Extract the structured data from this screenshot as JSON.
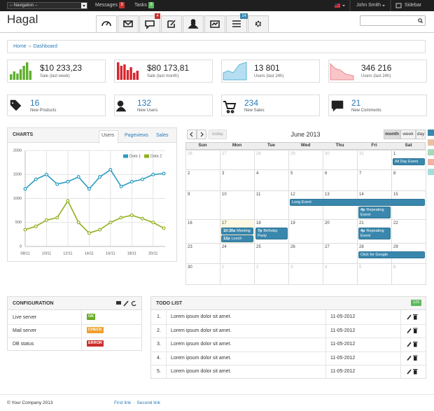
{
  "navbar": {
    "navigation": "-- Navigation --",
    "messages": {
      "label": "Messages",
      "badge": "3"
    },
    "tasks": {
      "label": "Tasks",
      "badge": "5"
    },
    "user": "John Smith",
    "sidebar": "Sidebar"
  },
  "header": {
    "title": "Hagal",
    "badges": {
      "notifications": "4",
      "tasks": "14"
    }
  },
  "breadcrumb": {
    "items": [
      "Home",
      "Dashboard"
    ],
    "separator": "»"
  },
  "stats": [
    {
      "value": "$10 233,23",
      "label": "Sale (last week)"
    },
    {
      "value": "$80 173,81",
      "label": "Sale (last month)"
    },
    {
      "value": "13 801",
      "label": "Users (last 24h)"
    },
    {
      "value": "346 216",
      "label": "Users (last 24h)"
    }
  ],
  "counters": [
    {
      "value": "16",
      "label": "New Products"
    },
    {
      "value": "132",
      "label": "New Users"
    },
    {
      "value": "234",
      "label": "New Sales"
    },
    {
      "value": "21",
      "label": "New Comments"
    }
  ],
  "charts_panel": {
    "title": "CHARTS",
    "tabs": [
      "Users",
      "Pageviews",
      "Sales"
    ]
  },
  "chart_data": {
    "type": "line",
    "categories": [
      "08/11",
      null,
      "10/11",
      null,
      "12/11",
      null,
      "14/11",
      null,
      "16/11",
      null,
      "18/11",
      null,
      "20/11",
      null
    ],
    "series": [
      {
        "name": "Data 1",
        "color": "#2b9cc1",
        "values": [
          1200,
          1400,
          1500,
          1300,
          1350,
          1450,
          1200,
          1450,
          1600,
          1250,
          1350,
          1400,
          1500,
          1520
        ]
      },
      {
        "name": "Data 2",
        "color": "#91b01e",
        "values": [
          350,
          420,
          550,
          600,
          950,
          500,
          280,
          350,
          500,
          600,
          650,
          580,
          500,
          380
        ]
      }
    ],
    "ylim": [
      0,
      2000
    ],
    "yticks": [
      0,
      500,
      1000,
      1500,
      2000
    ],
    "grid": true,
    "legend": "top-right"
  },
  "calendar": {
    "today": "today",
    "title": "June 2013",
    "views": [
      "month",
      "week",
      "day"
    ],
    "weekdays": [
      "Sun",
      "Mon",
      "Tue",
      "Wed",
      "Thu",
      "Fri",
      "Sat"
    ],
    "highlighted_date": 17,
    "weeks": [
      {
        "days": [
          26,
          27,
          28,
          29,
          30,
          31,
          1
        ],
        "events": [
          {
            "title": "All Day Event",
            "from": 1,
            "to": 1
          }
        ]
      },
      {
        "days": [
          2,
          3,
          4,
          5,
          6,
          7,
          8
        ],
        "events": []
      },
      {
        "days": [
          9,
          10,
          11,
          12,
          13,
          14,
          15
        ],
        "events": [
          {
            "title": "Long Event",
            "from": 12,
            "to": 15
          },
          {
            "time": "4p",
            "title": "Repeating Event",
            "from": 14,
            "to": 14
          }
        ]
      },
      {
        "days": [
          16,
          17,
          18,
          19,
          20,
          21,
          22
        ],
        "events": [
          {
            "time": "10:30a",
            "title": "Meeting",
            "from": 17,
            "to": 17
          },
          {
            "time": "12p",
            "title": "Lunch",
            "from": 17,
            "to": 17
          },
          {
            "time": "7p",
            "title": "Birthday Party",
            "from": 18,
            "to": 18
          },
          {
            "time": "4p",
            "title": "Repeating Event",
            "from": 21,
            "to": 21
          }
        ]
      },
      {
        "days": [
          23,
          24,
          25,
          26,
          27,
          28,
          29
        ],
        "events": [
          {
            "title": "Click for Google",
            "from": 28,
            "to": 29
          }
        ]
      },
      {
        "days": [
          30,
          1,
          2,
          3,
          4,
          5,
          6
        ],
        "events": []
      }
    ]
  },
  "configuration": {
    "title": "CONFIGURATION",
    "rows": [
      {
        "label": "Live server",
        "status": "OK",
        "color": "#6aaa25"
      },
      {
        "label": "Mail server",
        "status": "CHECK",
        "color": "#f0a030"
      },
      {
        "label": "DB status",
        "status": "ERROR",
        "color": "#c9302c"
      }
    ]
  },
  "todo": {
    "title": "TODO LIST",
    "badge": "123",
    "items": [
      {
        "number": "1.",
        "text": "Lorem ipsum dolor sit amet.",
        "date": "11-05-2012"
      },
      {
        "number": "2.",
        "text": "Lorem ipsum dolor sit amet.",
        "date": "11-05-2012"
      },
      {
        "number": "3.",
        "text": "Lorem ipsum dolor sit amet.",
        "date": "11-05-2012"
      },
      {
        "number": "4.",
        "text": "Lorem ipsum dolor sit amet.",
        "date": "11-05-2012"
      },
      {
        "number": "5.",
        "text": "Lorem ipsum dolor sit amet.",
        "date": "11-05-2012"
      }
    ]
  },
  "footer": {
    "copyright": "© Your Company 2013",
    "links": [
      "First link",
      "Second link"
    ],
    "separator": "·"
  }
}
